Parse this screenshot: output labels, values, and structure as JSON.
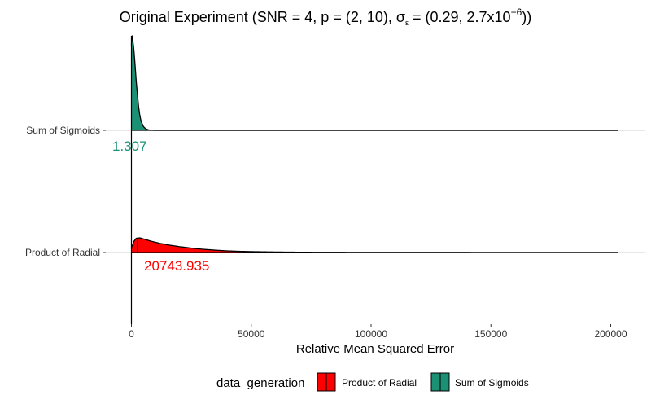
{
  "chart_data": {
    "type": "density_ridgeline",
    "title_main": "Original Experiment (SNR = 4, p = (2, 10), ",
    "title_sigma": "σ",
    "title_eps": "ε",
    "title_tail_a": " = (0.29, 2.7x10",
    "title_exp": "−6",
    "title_tail_b": "))",
    "xlabel": "Relative Mean Squared Error",
    "xlim": [
      0,
      205000
    ],
    "x_ticks": [
      0,
      50000,
      100000,
      150000,
      200000
    ],
    "x_tick_labels": [
      "0",
      "50000",
      "100000",
      "150000",
      "200000"
    ],
    "categories": [
      "Product of Radial",
      "Sum of Sigmoids"
    ],
    "legend_title": "data_generation",
    "series": [
      {
        "name": "Product of Radial",
        "color": "#FF0000",
        "median_label": "20743.935",
        "median": 20743.935,
        "quantile_lines": [
          0,
          2500,
          20743.935,
          45000
        ],
        "x_max": 203000,
        "density_x": [
          0,
          1000,
          2000,
          3500,
          5000,
          8000,
          12000,
          16000,
          20000,
          25000,
          30000,
          35000,
          40000,
          45000,
          50000,
          60000,
          70000,
          80000,
          100000,
          120000,
          150000,
          180000,
          203000
        ],
        "density_y": [
          0.33,
          0.75,
          0.97,
          1.0,
          0.93,
          0.78,
          0.62,
          0.5,
          0.4,
          0.3,
          0.22,
          0.16,
          0.11,
          0.08,
          0.06,
          0.035,
          0.02,
          0.012,
          0.006,
          0.003,
          0.0015,
          0.0008,
          0.0004
        ]
      },
      {
        "name": "Sum of Sigmoids",
        "color": "#1A9175",
        "median_label": "1.307",
        "median": 1.307,
        "quantile_lines": [
          0
        ],
        "x_max": 203000,
        "density_x": [
          0,
          150,
          300,
          500,
          1000,
          1500,
          2000,
          2500,
          3000,
          3500,
          4000,
          5000,
          6000,
          7000,
          8000,
          10000,
          203000
        ],
        "density_y": [
          0.9,
          0.99,
          1.0,
          0.97,
          0.86,
          0.7,
          0.52,
          0.38,
          0.25,
          0.16,
          0.1,
          0.04,
          0.015,
          0.006,
          0.002,
          0.0,
          0.0
        ]
      }
    ]
  }
}
